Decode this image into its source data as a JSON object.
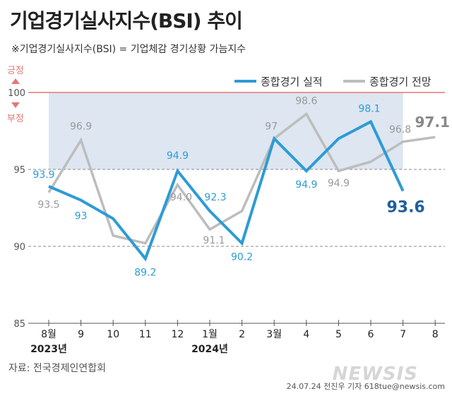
{
  "header": {
    "title": "기업경기실사지수(BSI) 추이",
    "subtitle": "※기업경기실사지수(BSI) = 기업체감 경기상황 가늠지수"
  },
  "footer": {
    "source": "자료: 전국경제인연합회",
    "credit": "24.07.24 전진우 기자 618tue@newsis.com",
    "watermark": "NEWSIS"
  },
  "reference": {
    "positive_label": "긍정",
    "negative_label": "부정",
    "line_value": 100
  },
  "colors": {
    "actual": "#2e9bd6",
    "forecast": "#bdbdbd",
    "reference_line": "#e27777",
    "shade": "#dde6f1",
    "last_actual_label": "#1f5f9e",
    "last_forecast_label": "#888888"
  },
  "chart_data": {
    "type": "line",
    "x": [
      "8월",
      "9",
      "10",
      "11",
      "12",
      "1월",
      "2",
      "3월",
      "4",
      "5",
      "6",
      "7",
      "8"
    ],
    "year_labels": [
      "2023년",
      "2024년"
    ],
    "ylim": [
      85,
      101
    ],
    "yticks": [
      85,
      90,
      95,
      100
    ],
    "series": [
      {
        "name": "종합경기 실적",
        "values": [
          93.9,
          93,
          91.8,
          89.2,
          94.9,
          92.3,
          90.2,
          97,
          94.9,
          97,
          98.1,
          93.6,
          null
        ],
        "labels": [
          "93.9",
          "93",
          null,
          "89.2",
          "94.9",
          "92.3",
          "90.2",
          null,
          "94.9",
          null,
          "98.1",
          "93.6",
          null
        ]
      },
      {
        "name": "종합경기 전망",
        "values": [
          93.5,
          96.9,
          90.7,
          90.2,
          94.0,
          91.1,
          92.3,
          97,
          98.6,
          94.9,
          95.5,
          96.8,
          97.1
        ],
        "labels": [
          "93.5",
          "96.9",
          null,
          null,
          "94.0",
          "91.1",
          null,
          "97",
          "98.6",
          "94.9",
          null,
          "96.8",
          "97.1"
        ]
      }
    ],
    "shade_range": {
      "x_from": 0,
      "x_to": 11,
      "y_from": 95,
      "y_to": 100
    },
    "grid": "dashed horizontal at 90 and 95",
    "legend": "top-right"
  }
}
